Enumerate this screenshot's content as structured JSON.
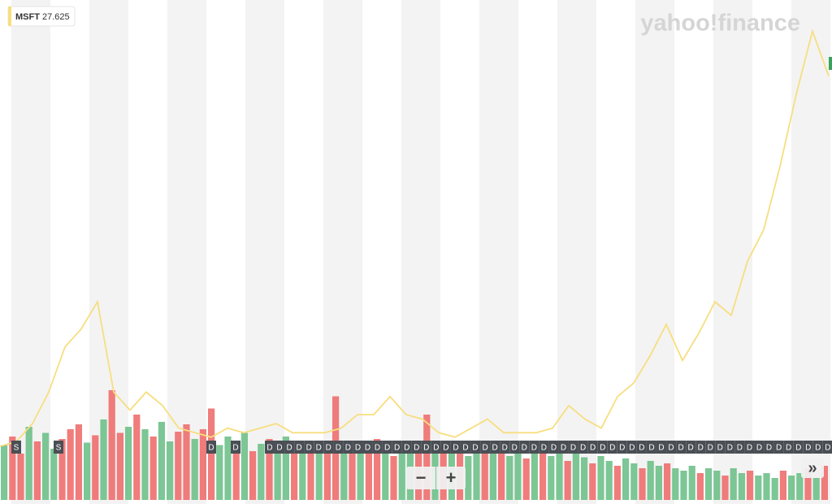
{
  "chart_data": {
    "type": "line",
    "logo": "yahoo!finance",
    "series": [
      {
        "name": "MSFT",
        "color": "#f7de7f",
        "values": [
          2,
          3,
          7,
          14,
          24,
          28,
          34,
          14,
          10,
          14,
          11,
          6,
          5,
          4,
          6,
          5,
          6,
          7,
          5,
          5,
          5,
          6,
          9,
          9,
          13,
          9,
          8,
          5,
          4,
          6,
          8,
          5,
          5,
          5,
          6,
          11,
          8,
          6,
          13,
          16,
          22,
          29,
          21,
          27,
          34,
          31,
          43,
          50,
          64,
          80,
          94,
          84
        ]
      }
    ],
    "price": 27.625,
    "ylim": [
      0,
      100
    ],
    "volume": {
      "ylim": [
        0,
        100
      ],
      "values": [
        45,
        52,
        38,
        60,
        48,
        55,
        42,
        50,
        58,
        62,
        47,
        53,
        66,
        90,
        55,
        60,
        70,
        58,
        52,
        64,
        48,
        56,
        62,
        50,
        58,
        75,
        45,
        52,
        48,
        55,
        40,
        46,
        50,
        44,
        52,
        38,
        45,
        42,
        48,
        40,
        85,
        44,
        38,
        46,
        42,
        50,
        40,
        36,
        44,
        48,
        42,
        70,
        38,
        44,
        40,
        46,
        36,
        42,
        38,
        45,
        40,
        36,
        42,
        34,
        38,
        44,
        36,
        40,
        32,
        38,
        35,
        30,
        36,
        32,
        28,
        34,
        30,
        26,
        32,
        28,
        30,
        26,
        24,
        28,
        22,
        26,
        24,
        20,
        26,
        22,
        24,
        20,
        22,
        18,
        24,
        20,
        22,
        26,
        18,
        28
      ],
      "colors": [
        "#6fc08a",
        "#ee6e6e",
        "#ee6e6e",
        "#6fc08a",
        "#ee6e6e",
        "#6fc08a",
        "#6fc08a",
        "#ee6e6e",
        "#ee6e6e",
        "#ee6e6e",
        "#6fc08a",
        "#ee6e6e",
        "#6fc08a",
        "#ee6e6e",
        "#ee6e6e",
        "#6fc08a",
        "#ee6e6e",
        "#6fc08a",
        "#ee6e6e",
        "#6fc08a",
        "#6fc08a",
        "#ee6e6e",
        "#ee6e6e",
        "#6fc08a",
        "#ee6e6e",
        "#ee6e6e",
        "#6fc08a",
        "#6fc08a",
        "#ee6e6e",
        "#6fc08a",
        "#ee6e6e",
        "#6fc08a",
        "#ee6e6e",
        "#6fc08a",
        "#6fc08a",
        "#ee6e6e",
        "#6fc08a",
        "#ee6e6e",
        "#6fc08a",
        "#ee6e6e",
        "#ee6e6e",
        "#6fc08a",
        "#ee6e6e",
        "#6fc08a",
        "#ee6e6e",
        "#ee6e6e",
        "#6fc08a",
        "#ee6e6e",
        "#6fc08a",
        "#6fc08a",
        "#ee6e6e",
        "#ee6e6e",
        "#6fc08a",
        "#ee6e6e",
        "#6fc08a",
        "#ee6e6e",
        "#6fc08a",
        "#6fc08a",
        "#ee6e6e",
        "#6fc08a",
        "#ee6e6e",
        "#6fc08a",
        "#6fc08a",
        "#ee6e6e",
        "#6fc08a",
        "#ee6e6e",
        "#6fc08a",
        "#6fc08a",
        "#ee6e6e",
        "#6fc08a",
        "#6fc08a",
        "#ee6e6e",
        "#6fc08a",
        "#6fc08a",
        "#ee6e6e",
        "#6fc08a",
        "#6fc08a",
        "#ee6e6e",
        "#6fc08a",
        "#6fc08a",
        "#ee6e6e",
        "#6fc08a",
        "#6fc08a",
        "#6fc08a",
        "#ee6e6e",
        "#6fc08a",
        "#6fc08a",
        "#ee6e6e",
        "#6fc08a",
        "#6fc08a",
        "#ee6e6e",
        "#6fc08a",
        "#6fc08a",
        "#6fc08a",
        "#ee6e6e",
        "#6fc08a",
        "#6fc08a",
        "#ee6e6e",
        "#6fc08a",
        "#ee6e6e"
      ]
    },
    "events": [
      "S",
      "S",
      "D",
      "D",
      "D",
      "D",
      "D",
      "D",
      "D",
      "D",
      "D",
      "D",
      "D",
      "D",
      "D",
      "D",
      "D",
      "D",
      "D",
      "D",
      "D",
      "D",
      "D",
      "D",
      "D",
      "D",
      "D",
      "D",
      "D",
      "D",
      "D",
      "D",
      "D",
      "D",
      "D",
      "D",
      "D",
      "D",
      "D",
      "D",
      "D",
      "D",
      "D",
      "D",
      "D",
      "D",
      "D",
      "D",
      "D",
      "D",
      "D",
      "D",
      "D",
      "D",
      "D",
      "D",
      "D",
      "D",
      "D",
      "D",
      "D",
      "D"
    ],
    "buttons": {
      "zoom_out": "−",
      "zoom_in": "+",
      "next": "»"
    }
  }
}
